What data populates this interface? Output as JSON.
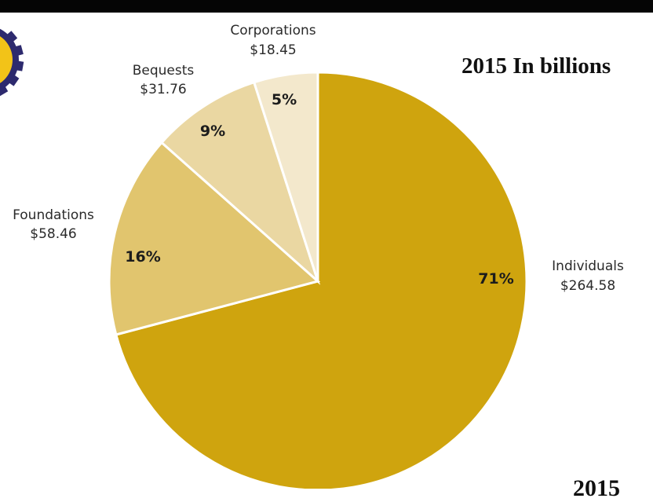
{
  "chart_data": {
    "type": "pie",
    "title": "2015 In billions",
    "slices": [
      {
        "label": "Individuals",
        "value_text": "$264.58",
        "value": 264.58,
        "percent_text": "71%",
        "percent": 71,
        "color": "#cfa40e"
      },
      {
        "label": "Foundations",
        "value_text": "$58.46",
        "value": 58.46,
        "percent_text": "16%",
        "percent": 16,
        "color": "#e1c56e"
      },
      {
        "label": "Bequests",
        "value_text": "$31.76",
        "value": 31.76,
        "percent_text": "9%",
        "percent": 9,
        "color": "#ead7a2"
      },
      {
        "label": "Corporations",
        "value_text": "$18.45",
        "value": 18.45,
        "percent_text": "5%",
        "percent": 5,
        "color": "#f3e8cc"
      }
    ]
  },
  "footer": {
    "year": "2015"
  },
  "colors": {
    "top_band": "#050505",
    "background": "#ffffff"
  },
  "icons": {
    "logo": "gear-logo-icon"
  }
}
